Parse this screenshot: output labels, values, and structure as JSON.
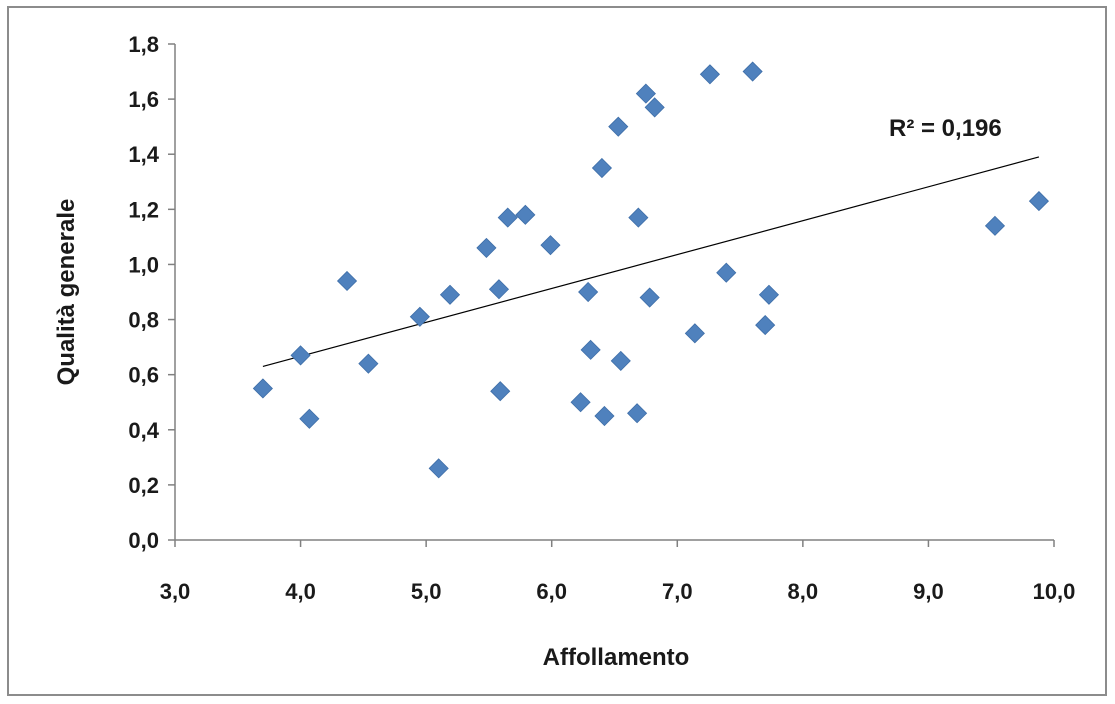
{
  "chart_data": {
    "type": "scatter",
    "xlabel": "Affollamento",
    "ylabel": "Qualità generale",
    "xlim": [
      3.0,
      10.0
    ],
    "ylim": [
      0.0,
      1.8
    ],
    "x_ticks": [
      "3,0",
      "4,0",
      "5,0",
      "6,0",
      "7,0",
      "8,0",
      "9,0",
      "10,0"
    ],
    "y_ticks": [
      "0,0",
      "0,2",
      "0,4",
      "0,6",
      "0,8",
      "1,0",
      "1,2",
      "1,4",
      "1,6",
      "1,8"
    ],
    "grid": false,
    "legend": "none",
    "marker": "diamond",
    "marker_color": "#4f81bd",
    "trendline": {
      "type": "linear",
      "x_range": [
        3.7,
        9.88
      ],
      "y_at_start": 0.63,
      "y_at_end": 1.39,
      "color": "#000000",
      "label": "R² = 0,196"
    },
    "points": [
      {
        "x": 3.7,
        "y": 0.55
      },
      {
        "x": 4.0,
        "y": 0.67
      },
      {
        "x": 4.07,
        "y": 0.44
      },
      {
        "x": 4.37,
        "y": 0.94
      },
      {
        "x": 4.54,
        "y": 0.64
      },
      {
        "x": 4.95,
        "y": 0.81
      },
      {
        "x": 5.1,
        "y": 0.26
      },
      {
        "x": 5.19,
        "y": 0.89
      },
      {
        "x": 5.48,
        "y": 1.06
      },
      {
        "x": 5.58,
        "y": 0.91
      },
      {
        "x": 5.59,
        "y": 0.54
      },
      {
        "x": 5.65,
        "y": 1.17
      },
      {
        "x": 5.79,
        "y": 1.18
      },
      {
        "x": 5.99,
        "y": 1.07
      },
      {
        "x": 6.23,
        "y": 0.5
      },
      {
        "x": 6.29,
        "y": 0.9
      },
      {
        "x": 6.31,
        "y": 0.69
      },
      {
        "x": 6.4,
        "y": 1.35
      },
      {
        "x": 6.42,
        "y": 0.45
      },
      {
        "x": 6.53,
        "y": 1.5
      },
      {
        "x": 6.55,
        "y": 0.65
      },
      {
        "x": 6.68,
        "y": 0.46
      },
      {
        "x": 6.69,
        "y": 1.17
      },
      {
        "x": 6.75,
        "y": 1.62
      },
      {
        "x": 6.78,
        "y": 0.88
      },
      {
        "x": 6.82,
        "y": 1.57
      },
      {
        "x": 7.14,
        "y": 0.75
      },
      {
        "x": 7.26,
        "y": 1.69
      },
      {
        "x": 7.39,
        "y": 0.97
      },
      {
        "x": 7.6,
        "y": 1.7
      },
      {
        "x": 7.7,
        "y": 0.78
      },
      {
        "x": 7.73,
        "y": 0.89
      },
      {
        "x": 9.53,
        "y": 1.14
      },
      {
        "x": 9.88,
        "y": 1.23
      }
    ]
  }
}
